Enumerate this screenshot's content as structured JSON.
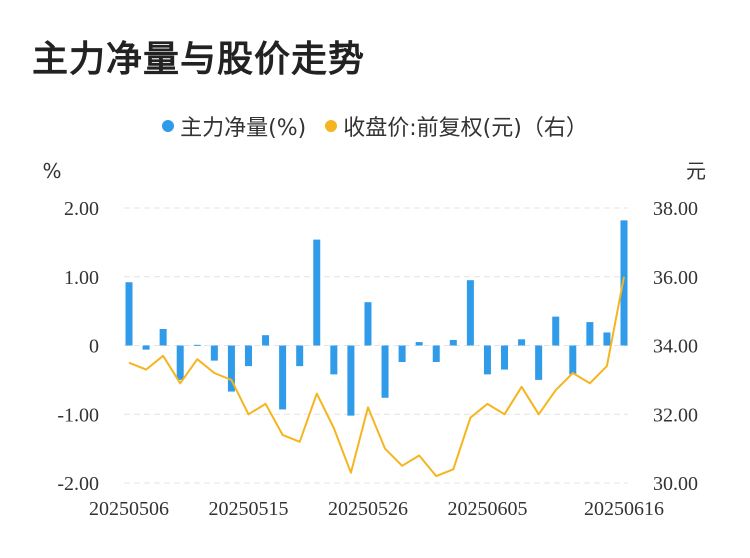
{
  "title": "主力净量与股价走势",
  "legend": {
    "bars": "主力净量(%)",
    "line": "收盘价:前复权(元)（右）"
  },
  "colors": {
    "bar": "#2f9be9",
    "line": "#f5b51f",
    "grid": "#e4e4e4",
    "text": "#333333"
  },
  "chart_data": {
    "type": "bar+line",
    "left_unit": "%",
    "right_unit": "元",
    "left_ticks": [
      "2.00",
      "1.00",
      "0",
      "-1.00",
      "-2.00"
    ],
    "right_ticks": [
      "38.00",
      "36.00",
      "34.00",
      "32.00",
      "30.00"
    ],
    "ylim_left": [
      -2,
      2
    ],
    "ylim_right": [
      30,
      38
    ],
    "x_tick_labels": [
      "20250506",
      "20250515",
      "20250526",
      "20250605",
      "20250616"
    ],
    "x_tick_indices": [
      0,
      7,
      14,
      21,
      29
    ],
    "series": [
      {
        "name": "主力净量(%)",
        "kind": "bar",
        "values": [
          0.92,
          -0.06,
          0.24,
          -0.5,
          0.01,
          -0.22,
          -0.67,
          -0.3,
          0.15,
          -0.93,
          -0.3,
          1.54,
          -0.42,
          -1.02,
          0.63,
          -0.76,
          -0.24,
          0.05,
          -0.24,
          0.08,
          0.95,
          -0.42,
          -0.35,
          0.09,
          -0.5,
          0.42,
          -0.42,
          0.34,
          0.19,
          1.82
        ]
      },
      {
        "name": "收盘价:前复权(元)（右）",
        "kind": "line",
        "values": [
          33.5,
          33.3,
          33.7,
          32.9,
          33.6,
          33.2,
          33.0,
          32.0,
          32.3,
          31.4,
          31.2,
          32.6,
          31.6,
          30.3,
          32.2,
          31.0,
          30.5,
          30.8,
          30.2,
          30.4,
          31.9,
          32.3,
          32.0,
          32.8,
          32.0,
          32.7,
          33.2,
          32.9,
          33.4,
          36.0
        ]
      }
    ]
  }
}
